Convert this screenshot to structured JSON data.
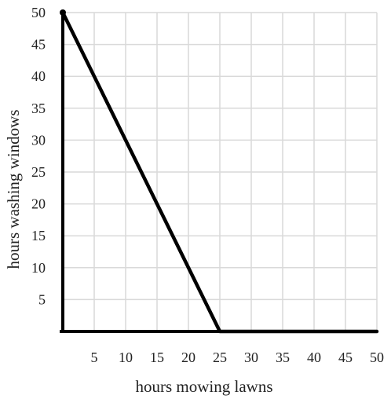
{
  "chart_data": {
    "type": "line",
    "title": "",
    "xlabel": "hours mowing lawns",
    "ylabel": "hours washing windows",
    "xlim": [
      0,
      50
    ],
    "ylim": [
      0,
      50
    ],
    "x_ticks": [
      "5",
      "10",
      "15",
      "20",
      "25",
      "30",
      "35",
      "40",
      "45",
      "50"
    ],
    "y_ticks": [
      "5",
      "10",
      "15",
      "20",
      "25",
      "30",
      "35",
      "40",
      "45",
      "50"
    ],
    "grid": true,
    "series": [
      {
        "points": [
          [
            0,
            50
          ],
          [
            25,
            0
          ],
          [
            50,
            0
          ]
        ]
      }
    ]
  }
}
